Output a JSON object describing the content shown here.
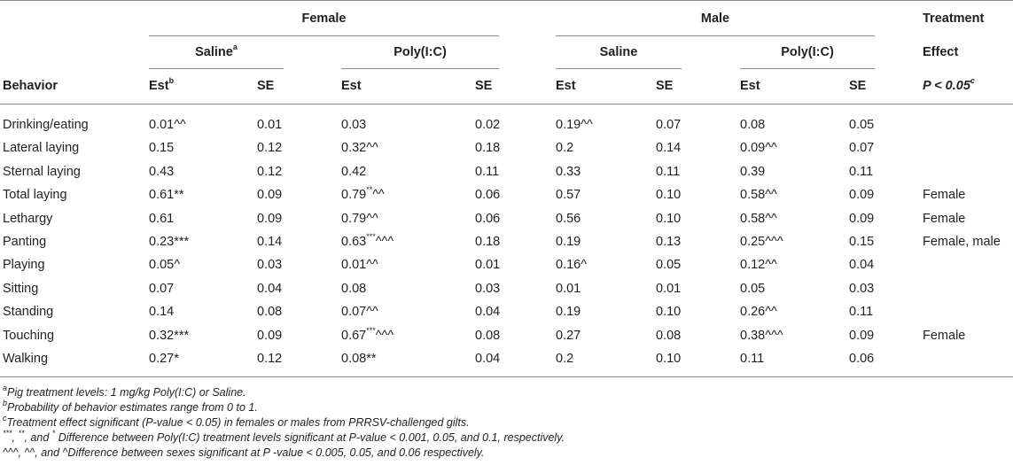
{
  "header": {
    "female": "Female",
    "male": "Male",
    "treatment_line1": "Treatment",
    "treatment_line2": "Effect",
    "pvalue": "P < 0.05",
    "pvalue_sup": "c",
    "saline": "Saline",
    "saline_sup": "a",
    "polyic": "Poly(I:C)",
    "behavior": "Behavior",
    "est": "Est",
    "est_sup": "b",
    "se": "SE"
  },
  "rows": [
    {
      "behavior": "Drinking/eating",
      "f_sal_est": "0.01^^",
      "f_sal_se": "0.01",
      "f_poly_est": "0.03",
      "f_poly_sup": "",
      "f_poly_suffix": "",
      "f_poly_se": "0.02",
      "m_sal_est": "0.19^^",
      "m_sal_se": "0.07",
      "m_poly_est": "0.08",
      "m_poly_se": "0.05",
      "effect": ""
    },
    {
      "behavior": "Lateral laying",
      "f_sal_est": "0.15",
      "f_sal_se": "0.12",
      "f_poly_est": "0.32^^",
      "f_poly_sup": "",
      "f_poly_suffix": "",
      "f_poly_se": "0.18",
      "m_sal_est": "0.2",
      "m_sal_se": "0.14",
      "m_poly_est": "0.09^^",
      "m_poly_se": "0.07",
      "effect": ""
    },
    {
      "behavior": "Sternal laying",
      "f_sal_est": "0.43",
      "f_sal_se": "0.12",
      "f_poly_est": "0.42",
      "f_poly_sup": "",
      "f_poly_suffix": "",
      "f_poly_se": "0.11",
      "m_sal_est": "0.33",
      "m_sal_se": "0.11",
      "m_poly_est": "0.39",
      "m_poly_se": "0.11",
      "effect": ""
    },
    {
      "behavior": "Total laying",
      "f_sal_est": "0.61**",
      "f_sal_se": "0.09",
      "f_poly_est": "0.79",
      "f_poly_sup": "**",
      "f_poly_suffix": "^^",
      "f_poly_se": "0.06",
      "m_sal_est": "0.57",
      "m_sal_se": "0.10",
      "m_poly_est": "0.58^^",
      "m_poly_se": "0.09",
      "effect": "Female"
    },
    {
      "behavior": "Lethargy",
      "f_sal_est": "0.61",
      "f_sal_se": "0.09",
      "f_poly_est": "0.79^^",
      "f_poly_sup": "",
      "f_poly_suffix": "",
      "f_poly_se": "0.06",
      "m_sal_est": "0.56",
      "m_sal_se": "0.10",
      "m_poly_est": "0.58^^",
      "m_poly_se": "0.09",
      "effect": "Female"
    },
    {
      "behavior": "Panting",
      "f_sal_est": "0.23***",
      "f_sal_se": "0.14",
      "f_poly_est": "0.63",
      "f_poly_sup": "***",
      "f_poly_suffix": "^^^",
      "f_poly_se": "0.18",
      "m_sal_est": "0.19",
      "m_sal_se": "0.13",
      "m_poly_est": "0.25^^^",
      "m_poly_se": "0.15",
      "effect": "Female, male"
    },
    {
      "behavior": "Playing",
      "f_sal_est": "0.05^",
      "f_sal_se": "0.03",
      "f_poly_est": "0.01^^",
      "f_poly_sup": "",
      "f_poly_suffix": "",
      "f_poly_se": "0.01",
      "m_sal_est": "0.16^",
      "m_sal_se": "0.05",
      "m_poly_est": "0.12^^",
      "m_poly_se": "0.04",
      "effect": ""
    },
    {
      "behavior": "Sitting",
      "f_sal_est": "0.07",
      "f_sal_se": "0.04",
      "f_poly_est": "0.08",
      "f_poly_sup": "",
      "f_poly_suffix": "",
      "f_poly_se": "0.03",
      "m_sal_est": "0.01",
      "m_sal_se": "0.01",
      "m_poly_est": "0.05",
      "m_poly_se": "0.03",
      "effect": ""
    },
    {
      "behavior": "Standing",
      "f_sal_est": "0.14",
      "f_sal_se": "0.08",
      "f_poly_est": "0.07^^",
      "f_poly_sup": "",
      "f_poly_suffix": "",
      "f_poly_se": "0.04",
      "m_sal_est": "0.19",
      "m_sal_se": "0.10",
      "m_poly_est": "0.26^^",
      "m_poly_se": "0.11",
      "effect": ""
    },
    {
      "behavior": "Touching",
      "f_sal_est": "0.32***",
      "f_sal_se": "0.09",
      "f_poly_est": "0.67",
      "f_poly_sup": "***",
      "f_poly_suffix": "^^^",
      "f_poly_se": "0.08",
      "m_sal_est": "0.27",
      "m_sal_se": "0.08",
      "m_poly_est": "0.38^^^",
      "m_poly_se": "0.09",
      "effect": "Female"
    },
    {
      "behavior": "Walking",
      "f_sal_est": "0.27*",
      "f_sal_se": "0.12",
      "f_poly_est": "0.08**",
      "f_poly_sup": "",
      "f_poly_suffix": "",
      "f_poly_se": "0.04",
      "m_sal_est": "0.2",
      "m_sal_se": "0.10",
      "m_poly_est": "0.11",
      "m_poly_se": "0.06",
      "effect": ""
    }
  ],
  "footnotes": {
    "a_mark": "a",
    "a_text": "Pig treatment levels: 1 mg/kg Poly(I:C) or Saline.",
    "b_mark": "b",
    "b_text": "Probability of behavior estimates range from 0 to 1.",
    "c_mark": "c",
    "c_text": "Treatment effect significant (P-value < 0.05) in females or males from PRRSV-challenged gilts.",
    "d_m1": "***",
    "d_t1": ", ",
    "d_m2": "**",
    "d_t2": ", and ",
    "d_m3": "*",
    "d_text": " Difference between Poly(I:C) treatment levels significant at P-value < 0.001, 0.05, and 0.1, respectively.",
    "e_text": "^^^, ^^, and ^Difference between sexes significant at P -value < 0.005, 0.05, and 0.06 respectively."
  }
}
